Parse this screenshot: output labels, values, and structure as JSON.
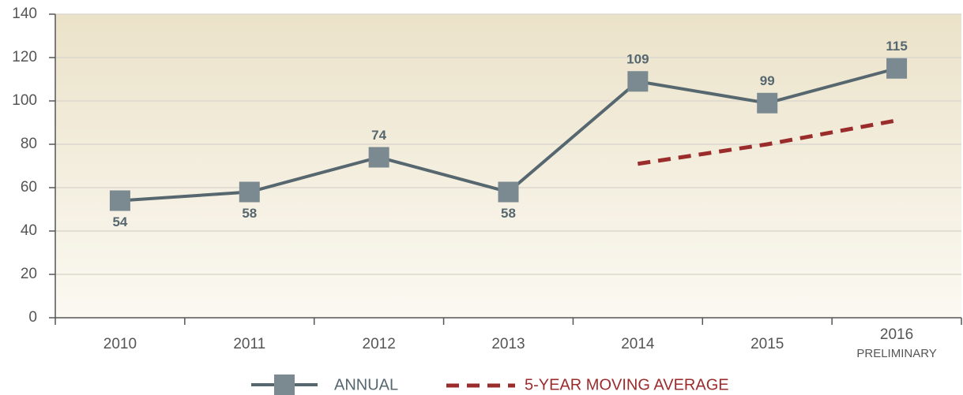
{
  "chart_data": {
    "type": "line",
    "categories": [
      "2010",
      "2011",
      "2012",
      "2013",
      "2014",
      "2015",
      "2016"
    ],
    "category_note": "PRELIMINARY",
    "series": [
      {
        "name": "ANNUAL",
        "color": "#56676f",
        "marker_color": "#7b8a91",
        "values": [
          54,
          58,
          74,
          58,
          109,
          99,
          115
        ]
      },
      {
        "name": "5-YEAR MOVING AVERAGE",
        "color": "#9b2c2c",
        "dashed": true,
        "values": [
          null,
          null,
          null,
          null,
          71,
          80,
          91
        ]
      }
    ],
    "ylim": [
      0,
      140
    ],
    "yticks": [
      0,
      20,
      40,
      60,
      80,
      100,
      120,
      140
    ],
    "grid": true
  }
}
